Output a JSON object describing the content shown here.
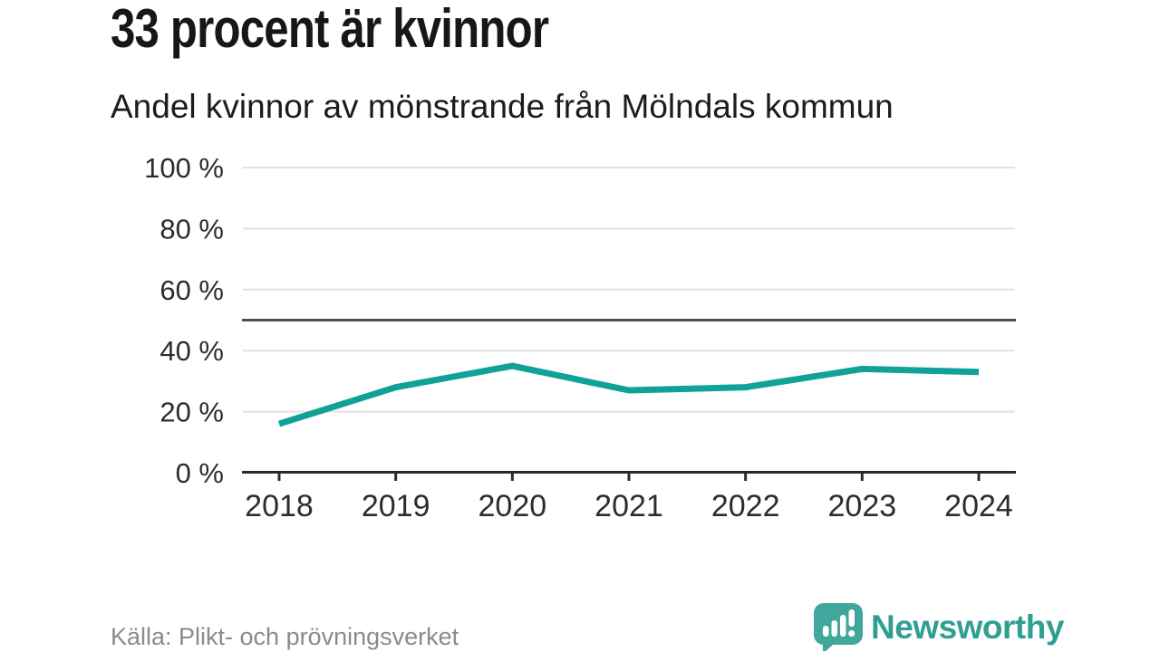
{
  "header": {
    "title": "33 procent är kvinnor",
    "subtitle": "Andel kvinnor av mönstrande från Mölndals kommun"
  },
  "chart_data": {
    "type": "line",
    "title": "33 procent är kvinnor",
    "subtitle": "Andel kvinnor av mönstrande från Mölndals kommun",
    "categories": [
      "2018",
      "2019",
      "2020",
      "2021",
      "2022",
      "2023",
      "2024"
    ],
    "series": [
      {
        "name": "Andel kvinnor av mönstrande",
        "values": [
          16,
          28,
          35,
          27,
          28,
          34,
          33
        ]
      }
    ],
    "unit": "%",
    "ylim": [
      0,
      100
    ],
    "yticks": [
      0,
      20,
      40,
      60,
      80,
      100
    ],
    "ytick_suffix": " %",
    "reference_line_y": 50,
    "grid": true,
    "legend": "none",
    "colors": {
      "line": "#10A296",
      "reference_line": "#4F4F4F",
      "grid": "#E2E2E2",
      "axis": "#2B2B2B",
      "tick_label": "#2D2D2D"
    }
  },
  "footer": {
    "source": "Källa: Plikt- och prövningsverket",
    "brand": "Newsworthy",
    "brand_color": "#2F9E93",
    "logo_color": "#3FA79B"
  }
}
